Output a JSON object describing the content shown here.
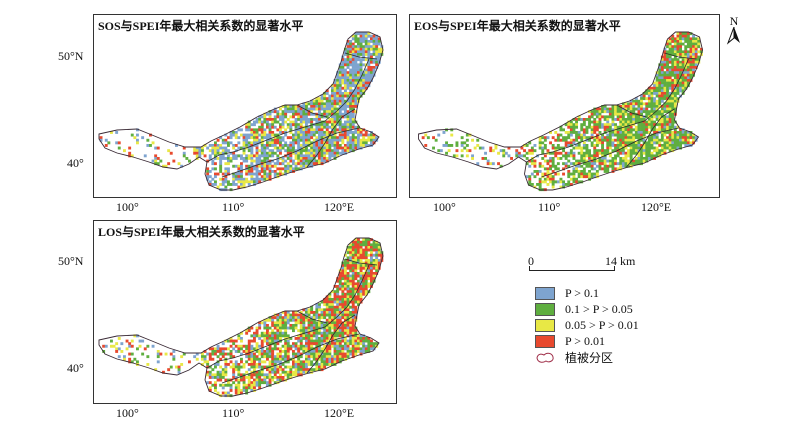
{
  "panels": [
    {
      "id": "sos",
      "title": "SOS与SPEI年最大相关系数的显著水平"
    },
    {
      "id": "eos",
      "title": "EOS与SPEI年最大相关系数的显著水平"
    },
    {
      "id": "los",
      "title": "LOS与SPEI年最大相关系数的显著水平"
    }
  ],
  "axes": {
    "lat_labels": [
      "50°N",
      "40°"
    ],
    "lon_labels": [
      "100°",
      "110°",
      "120°E"
    ]
  },
  "north_arrow": {
    "label": "N",
    "icon": "north-arrow-icon"
  },
  "scale_bar": {
    "start": "0",
    "end": "14 km"
  },
  "legend": {
    "items": [
      {
        "label": "P > 0.1",
        "color": "#7ea4cf"
      },
      {
        "label": "0.1 > P > 0.05",
        "color": "#5fae3f"
      },
      {
        "label": "0.05 > P > 0.01",
        "color": "#e8e845"
      },
      {
        "label": "P > 0.01",
        "color": "#e8492e"
      }
    ],
    "zone_label": "植被分区",
    "zone_color": "#a0304a"
  }
}
